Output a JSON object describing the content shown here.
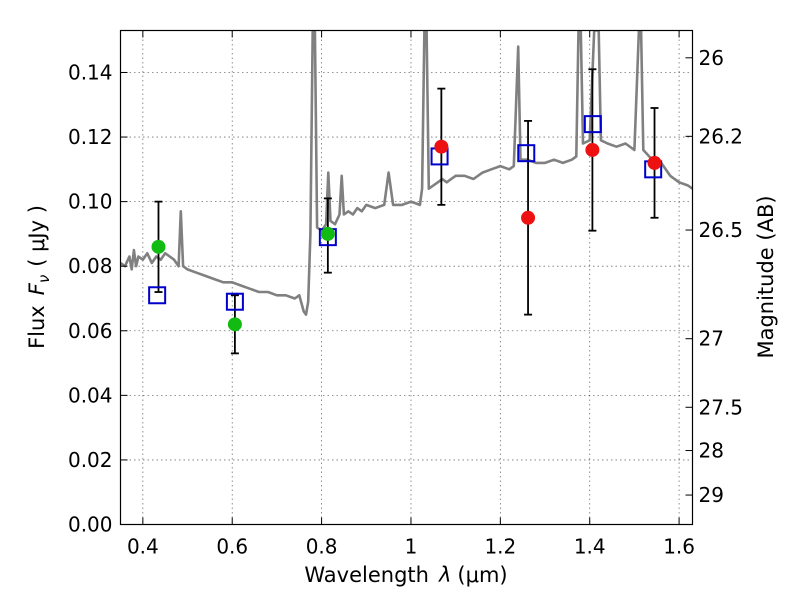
{
  "chart_data": {
    "type": "scatter",
    "xlabel_prefix": "Wavelength",
    "xlabel_symbol": "λ",
    "xlabel_unit": "(μm)",
    "ylabel_prefix": "Flux",
    "ylabel_symbol": "F",
    "ylabel_subscript": "ν",
    "ylabel_unit": "( μJy )",
    "ylabel_right": "Magnitude (AB)",
    "xlim": [
      0.35,
      1.63
    ],
    "ylim": [
      0.0,
      0.153
    ],
    "x_ticks": [
      0.4,
      0.6,
      0.8,
      1.0,
      1.2,
      1.4,
      1.6
    ],
    "x_tick_labels": [
      "0.4",
      "0.6",
      "0.8",
      "1",
      "1.2",
      "1.4",
      "1.6"
    ],
    "y_ticks": [
      0.0,
      0.02,
      0.04,
      0.06,
      0.08,
      0.1,
      0.12,
      0.14
    ],
    "y_tick_labels": [
      "0.00",
      "0.02",
      "0.04",
      "0.06",
      "0.08",
      "0.10",
      "0.12",
      "0.14"
    ],
    "right_ticks": [
      {
        "mag": 26,
        "label": "26"
      },
      {
        "mag": 26.2,
        "label": "26.2"
      },
      {
        "mag": 26.5,
        "label": "26.5"
      },
      {
        "mag": 27,
        "label": "27"
      },
      {
        "mag": 27.5,
        "label": "27.5"
      },
      {
        "mag": 28,
        "label": "28"
      },
      {
        "mag": 29,
        "label": "29"
      }
    ],
    "grid": true,
    "colors": {
      "template": "#808080",
      "model": "#0000cc",
      "optical": "#11bb11",
      "nir": "#ee1111",
      "errorbar": "#000000"
    },
    "template_spectrum": [
      [
        0.35,
        0.081
      ],
      [
        0.36,
        0.08
      ],
      [
        0.37,
        0.083
      ],
      [
        0.375,
        0.079
      ],
      [
        0.38,
        0.085
      ],
      [
        0.385,
        0.08
      ],
      [
        0.39,
        0.083
      ],
      [
        0.4,
        0.082
      ],
      [
        0.41,
        0.084
      ],
      [
        0.42,
        0.081
      ],
      [
        0.43,
        0.083
      ],
      [
        0.44,
        0.082
      ],
      [
        0.45,
        0.084
      ],
      [
        0.46,
        0.083
      ],
      [
        0.47,
        0.082
      ],
      [
        0.48,
        0.08
      ],
      [
        0.485,
        0.097
      ],
      [
        0.49,
        0.08
      ],
      [
        0.5,
        0.079
      ],
      [
        0.52,
        0.078
      ],
      [
        0.54,
        0.077
      ],
      [
        0.56,
        0.076
      ],
      [
        0.58,
        0.075
      ],
      [
        0.6,
        0.075
      ],
      [
        0.62,
        0.074
      ],
      [
        0.64,
        0.073
      ],
      [
        0.66,
        0.072
      ],
      [
        0.68,
        0.072
      ],
      [
        0.7,
        0.071
      ],
      [
        0.72,
        0.071
      ],
      [
        0.74,
        0.07
      ],
      [
        0.75,
        0.071
      ],
      [
        0.76,
        0.066
      ],
      [
        0.765,
        0.065
      ],
      [
        0.77,
        0.069
      ],
      [
        0.775,
        0.09
      ],
      [
        0.78,
        0.153
      ],
      [
        0.785,
        0.153
      ],
      [
        0.79,
        0.092
      ],
      [
        0.8,
        0.091
      ],
      [
        0.81,
        0.093
      ],
      [
        0.815,
        0.109
      ],
      [
        0.82,
        0.094
      ],
      [
        0.83,
        0.093
      ],
      [
        0.84,
        0.096
      ],
      [
        0.845,
        0.108
      ],
      [
        0.85,
        0.096
      ],
      [
        0.86,
        0.097
      ],
      [
        0.87,
        0.096
      ],
      [
        0.88,
        0.098
      ],
      [
        0.89,
        0.097
      ],
      [
        0.9,
        0.099
      ],
      [
        0.92,
        0.098
      ],
      [
        0.94,
        0.099
      ],
      [
        0.95,
        0.109
      ],
      [
        0.96,
        0.099
      ],
      [
        0.98,
        0.099
      ],
      [
        1.0,
        0.1
      ],
      [
        1.02,
        0.099
      ],
      [
        1.025,
        0.104
      ],
      [
        1.03,
        0.153
      ],
      [
        1.035,
        0.153
      ],
      [
        1.04,
        0.104
      ],
      [
        1.05,
        0.105
      ],
      [
        1.06,
        0.106
      ],
      [
        1.07,
        0.107
      ],
      [
        1.08,
        0.106
      ],
      [
        1.09,
        0.107
      ],
      [
        1.1,
        0.108
      ],
      [
        1.12,
        0.108
      ],
      [
        1.14,
        0.107
      ],
      [
        1.16,
        0.109
      ],
      [
        1.18,
        0.11
      ],
      [
        1.2,
        0.111
      ],
      [
        1.22,
        0.11
      ],
      [
        1.23,
        0.111
      ],
      [
        1.24,
        0.148
      ],
      [
        1.245,
        0.113
      ],
      [
        1.26,
        0.113
      ],
      [
        1.28,
        0.112
      ],
      [
        1.3,
        0.112
      ],
      [
        1.32,
        0.113
      ],
      [
        1.34,
        0.112
      ],
      [
        1.36,
        0.113
      ],
      [
        1.37,
        0.114
      ],
      [
        1.375,
        0.153
      ],
      [
        1.38,
        0.153
      ],
      [
        1.385,
        0.118
      ],
      [
        1.4,
        0.119
      ],
      [
        1.41,
        0.153
      ],
      [
        1.42,
        0.153
      ],
      [
        1.425,
        0.119
      ],
      [
        1.44,
        0.118
      ],
      [
        1.46,
        0.117
      ],
      [
        1.48,
        0.118
      ],
      [
        1.5,
        0.116
      ],
      [
        1.51,
        0.153
      ],
      [
        1.515,
        0.153
      ],
      [
        1.52,
        0.116
      ],
      [
        1.54,
        0.113
      ],
      [
        1.56,
        0.112
      ],
      [
        1.58,
        0.108
      ],
      [
        1.6,
        0.106
      ],
      [
        1.62,
        0.105
      ],
      [
        1.63,
        0.104
      ]
    ],
    "model_points": [
      {
        "x": 0.432,
        "y": 0.071
      },
      {
        "x": 0.606,
        "y": 0.069
      },
      {
        "x": 0.814,
        "y": 0.089
      },
      {
        "x": 1.064,
        "y": 0.114
      },
      {
        "x": 1.258,
        "y": 0.115
      },
      {
        "x": 1.407,
        "y": 0.124
      },
      {
        "x": 1.542,
        "y": 0.11
      }
    ],
    "observed_optical": [
      {
        "x": 0.435,
        "y": 0.086,
        "err_low": 0.072,
        "err_high": 0.1
      },
      {
        "x": 0.606,
        "y": 0.062,
        "err_low": 0.053,
        "err_high": 0.071
      },
      {
        "x": 0.814,
        "y": 0.09,
        "err_low": 0.078,
        "err_high": 0.101
      }
    ],
    "observed_nir": [
      {
        "x": 1.068,
        "y": 0.117,
        "err_low": 0.099,
        "err_high": 0.135
      },
      {
        "x": 1.262,
        "y": 0.095,
        "err_low": 0.065,
        "err_high": 0.125
      },
      {
        "x": 1.406,
        "y": 0.116,
        "err_low": 0.091,
        "err_high": 0.141
      },
      {
        "x": 1.545,
        "y": 0.112,
        "err_low": 0.095,
        "err_high": 0.129
      }
    ]
  }
}
